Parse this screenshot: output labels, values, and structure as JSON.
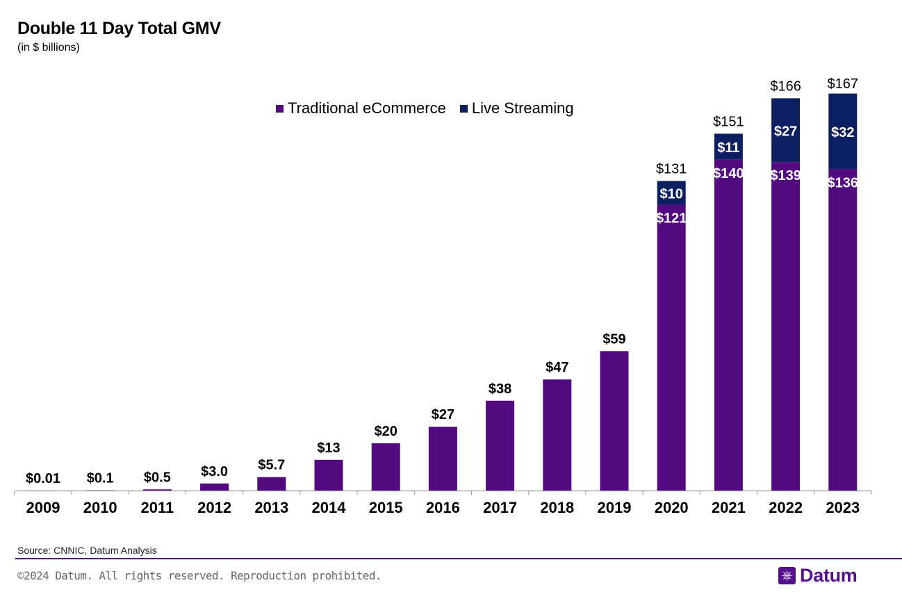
{
  "title": "Double 11 Day Total GMV",
  "subtitle": "(in $ billions)",
  "source": "Source: CNNIC, Datum Analysis",
  "footer": "©2024 Datum. All rights reserved. Reproduction prohibited.",
  "logo_text": "Datum",
  "colors": {
    "traditional": "#520a7e",
    "live": "#0c1f60"
  },
  "chart_data": {
    "type": "bar",
    "stacked": true,
    "title": "Double 11 Day Total GMV",
    "subtitle": "(in $ billions)",
    "legend_position": "top-center",
    "grid": false,
    "categories": [
      "2009",
      "2010",
      "2011",
      "2012",
      "2013",
      "2014",
      "2015",
      "2016",
      "2017",
      "2018",
      "2019",
      "2020",
      "2021",
      "2022",
      "2023"
    ],
    "series": [
      {
        "name": "Traditional eCommerce",
        "values": [
          0.01,
          0.1,
          0.5,
          3.0,
          5.7,
          13,
          20,
          27,
          38,
          47,
          59,
          121,
          140,
          139,
          136
        ],
        "segment_labels": [
          null,
          null,
          null,
          null,
          null,
          null,
          null,
          null,
          null,
          null,
          null,
          "$121",
          "$140",
          "$139",
          "$136"
        ]
      },
      {
        "name": "Live Streaming",
        "values": [
          0,
          0,
          0,
          0,
          0,
          0,
          0,
          0,
          0,
          0,
          0,
          10,
          11,
          27,
          32
        ],
        "segment_labels": [
          null,
          null,
          null,
          null,
          null,
          null,
          null,
          null,
          null,
          null,
          null,
          "$10",
          "$11",
          "$27",
          "$32"
        ]
      }
    ],
    "totals": [
      0.01,
      0.1,
      0.5,
      3.0,
      5.7,
      13,
      20,
      27,
      38,
      47,
      59,
      131,
      151,
      166,
      167
    ],
    "total_labels": [
      "$0.01",
      "$0.1",
      "$0.5",
      "$3.0",
      "$5.7",
      "$13",
      "$20",
      "$27",
      "$38",
      "$47",
      "$59",
      "$131",
      "$151",
      "$166",
      "$167"
    ],
    "ylim": [
      0,
      167
    ]
  }
}
